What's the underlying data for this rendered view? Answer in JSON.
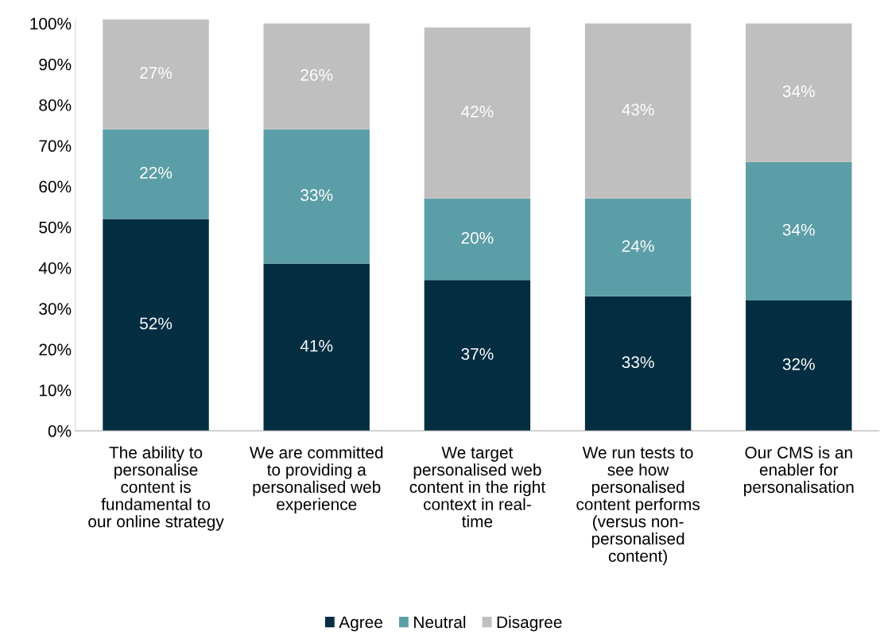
{
  "chart_data": {
    "type": "bar",
    "stacked": true,
    "categories": [
      "The ability to\npersonalise\ncontent is\nfundamental to\nour online strategy",
      "We are committed\nto providing a\npersonalised web\nexperience",
      "We target\npersonalised web\ncontent in the right\ncontext in real-\ntime",
      "We run tests to\nsee how\npersonalised\ncontent performs\n(versus non-\npersonalised\ncontent)",
      "Our CMS is an\nenabler for\npersonalisation"
    ],
    "series": [
      {
        "name": "Agree",
        "color": "#032e42",
        "values": [
          52,
          41,
          37,
          33,
          32
        ],
        "value_labels": [
          "52%",
          "41%",
          "37%",
          "33%",
          "32%"
        ]
      },
      {
        "name": "Neutral",
        "color": "#5b9ea7",
        "values": [
          22,
          33,
          20,
          24,
          34
        ],
        "value_labels": [
          "22%",
          "33%",
          "20%",
          "24%",
          "34%"
        ]
      },
      {
        "name": "Disagree",
        "color": "#bfbfbf",
        "values": [
          27,
          26,
          42,
          43,
          34
        ],
        "value_labels": [
          "27%",
          "26%",
          "42%",
          "43%",
          "34%"
        ]
      }
    ],
    "ylim": [
      0,
      101
    ],
    "yticks": [
      {
        "value": 0,
        "label": "0%"
      },
      {
        "value": 10,
        "label": "10%"
      },
      {
        "value": 20,
        "label": "20%"
      },
      {
        "value": 30,
        "label": "30%"
      },
      {
        "value": 40,
        "label": "40%"
      },
      {
        "value": 50,
        "label": "50%"
      },
      {
        "value": 60,
        "label": "60%"
      },
      {
        "value": 70,
        "label": "70%"
      },
      {
        "value": 80,
        "label": "80%"
      },
      {
        "value": 90,
        "label": "90%"
      },
      {
        "value": 100,
        "label": "100%"
      }
    ],
    "grid": false,
    "legend": "bottom"
  }
}
